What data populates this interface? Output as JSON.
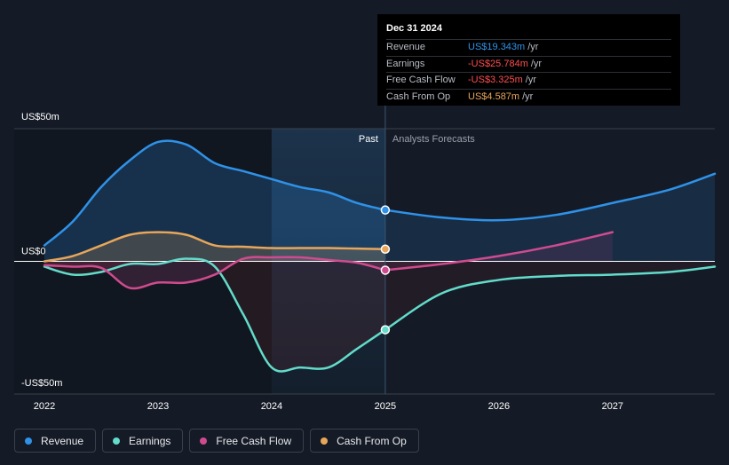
{
  "chart_data": {
    "type": "line",
    "title": "",
    "y_unit": "US$ m",
    "ylim": [
      -50,
      50
    ],
    "xlim": [
      2022,
      2027.9
    ],
    "x_ticks": [
      {
        "value": 2022,
        "label": "2022"
      },
      {
        "value": 2023,
        "label": "2023"
      },
      {
        "value": 2024,
        "label": "2024"
      },
      {
        "value": 2025,
        "label": "2025"
      },
      {
        "value": 2026,
        "label": "2026"
      },
      {
        "value": 2027,
        "label": "2027"
      }
    ],
    "y_ticks": [
      {
        "value": 50,
        "label": "US$50m"
      },
      {
        "value": 0,
        "label": "US$0"
      },
      {
        "value": -50,
        "label": "-US$50m"
      }
    ],
    "past_label": "Past",
    "forecast_label": "Analysts Forecasts",
    "past_shade_start": 2024.0,
    "divider_x": 2025.0,
    "series": [
      {
        "name": "Revenue",
        "color": "#2f92e8",
        "x": [
          2022.0,
          2022.25,
          2022.5,
          2022.75,
          2023.0,
          2023.25,
          2023.5,
          2023.75,
          2024.0,
          2024.25,
          2024.5,
          2024.75,
          2025.0
        ],
        "values": [
          6,
          15,
          28,
          38,
          45,
          44,
          37,
          34,
          31,
          28,
          26,
          22,
          19.343
        ],
        "forecast_x": [
          2025.0,
          2025.5,
          2026.0,
          2026.5,
          2027.0,
          2027.5,
          2027.9
        ],
        "forecast_values": [
          19.343,
          16.5,
          15.5,
          17.5,
          22,
          27,
          33
        ]
      },
      {
        "name": "Earnings",
        "color": "#62dccb",
        "x": [
          2022.0,
          2022.25,
          2022.5,
          2022.75,
          2023.0,
          2023.25,
          2023.5,
          2023.75,
          2024.0,
          2024.25,
          2024.5,
          2024.75,
          2025.0
        ],
        "values": [
          -2,
          -5,
          -4,
          -1,
          -1,
          1,
          -2,
          -20,
          -40,
          -40,
          -40,
          -33,
          -25.784
        ],
        "forecast_x": [
          2025.0,
          2025.5,
          2026.0,
          2026.5,
          2027.0,
          2027.5,
          2027.9
        ],
        "forecast_values": [
          -25.784,
          -12,
          -7,
          -5.5,
          -5,
          -4,
          -2
        ]
      },
      {
        "name": "Free Cash Flow",
        "color": "#cf4b8f",
        "x": [
          2022.0,
          2022.25,
          2022.5,
          2022.75,
          2023.0,
          2023.25,
          2023.5,
          2023.75,
          2024.0,
          2024.25,
          2024.5,
          2024.75,
          2025.0
        ],
        "values": [
          -1.5,
          -2,
          -2.5,
          -10,
          -8,
          -8,
          -5,
          1,
          1.5,
          1.5,
          0.5,
          -0.5,
          -3.325
        ],
        "forecast_x": [
          2025.0,
          2025.5,
          2026.0,
          2026.5,
          2027.0
        ],
        "forecast_values": [
          -3.325,
          -1,
          2,
          6,
          11
        ]
      },
      {
        "name": "Cash From Op",
        "color": "#e8a65a",
        "x": [
          2022.0,
          2022.25,
          2022.5,
          2022.75,
          2023.0,
          2023.25,
          2023.5,
          2023.75,
          2024.0,
          2024.25,
          2024.5,
          2024.75,
          2025.0
        ],
        "values": [
          0,
          2,
          6,
          10,
          11,
          10,
          6,
          5.5,
          5,
          5,
          5,
          4.8,
          4.587
        ],
        "forecast_x": [],
        "forecast_values": []
      }
    ]
  },
  "tooltip": {
    "date": "Dec 31 2024",
    "unit": "/yr",
    "rows": [
      {
        "label": "Revenue",
        "value": "US$19.343m",
        "color": "#2f92e8"
      },
      {
        "label": "Earnings",
        "value": "-US$25.784m",
        "color": "#ff4d4f"
      },
      {
        "label": "Free Cash Flow",
        "value": "-US$3.325m",
        "color": "#ff4d4f"
      },
      {
        "label": "Cash From Op",
        "value": "US$4.587m",
        "color": "#e8a65a"
      }
    ]
  },
  "legend": [
    {
      "label": "Revenue",
      "color": "#2f92e8"
    },
    {
      "label": "Earnings",
      "color": "#62dccb"
    },
    {
      "label": "Free Cash Flow",
      "color": "#cf4b8f"
    },
    {
      "label": "Cash From Op",
      "color": "#e8a65a"
    }
  ]
}
